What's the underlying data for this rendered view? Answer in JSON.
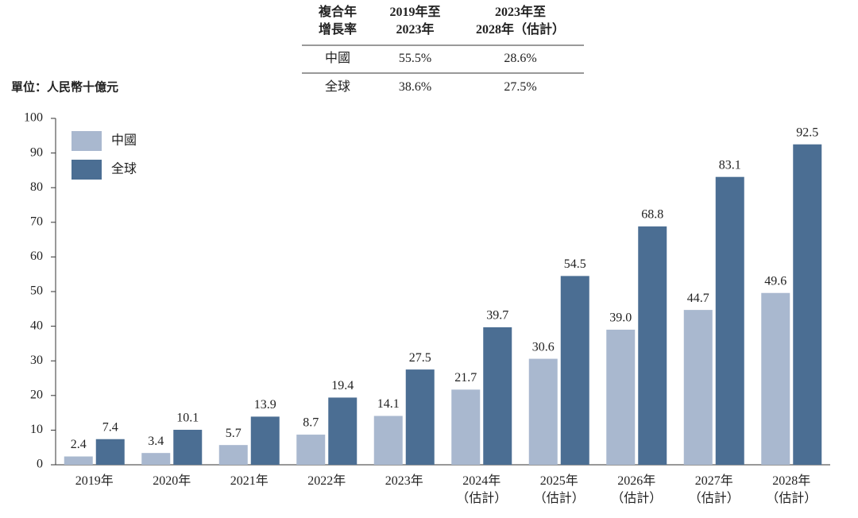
{
  "cagr_table": {
    "header": [
      "複合年\n增長率",
      "2019年至\n2023年",
      "2023年至\n2028年（估計）"
    ],
    "rows": [
      [
        "中國",
        "55.5%",
        "28.6%"
      ],
      [
        "全球",
        "38.6%",
        "27.5%"
      ]
    ]
  },
  "chart_data": {
    "type": "bar",
    "unit_label": "單位：人民幣十億元",
    "categories": [
      "2019年",
      "2020年",
      "2021年",
      "2022年",
      "2023年",
      "2024年\n（估計）",
      "2025年\n（估計）",
      "2026年\n（估計）",
      "2027年\n（估計）",
      "2028年\n（估計）"
    ],
    "series": [
      {
        "name": "中國",
        "color": "#a9b8cf",
        "values": [
          2.4,
          3.4,
          5.7,
          8.7,
          14.1,
          21.7,
          30.6,
          39.0,
          44.7,
          49.6
        ],
        "value_labels": [
          "2.4",
          "3.4",
          "5.7",
          "8.7",
          "14.1",
          "21.7",
          "30.6",
          "39.0",
          "44.7",
          "49.6"
        ]
      },
      {
        "name": "全球",
        "color": "#4b6e93",
        "values": [
          7.4,
          10.1,
          13.9,
          19.4,
          27.5,
          39.7,
          54.5,
          68.8,
          83.1,
          92.5
        ]
      }
    ],
    "ylim": [
      0,
      100
    ],
    "yticks": [
      0,
      10,
      20,
      30,
      40,
      50,
      60,
      70,
      80,
      90,
      100
    ],
    "grid": false,
    "legend": "top-left"
  }
}
